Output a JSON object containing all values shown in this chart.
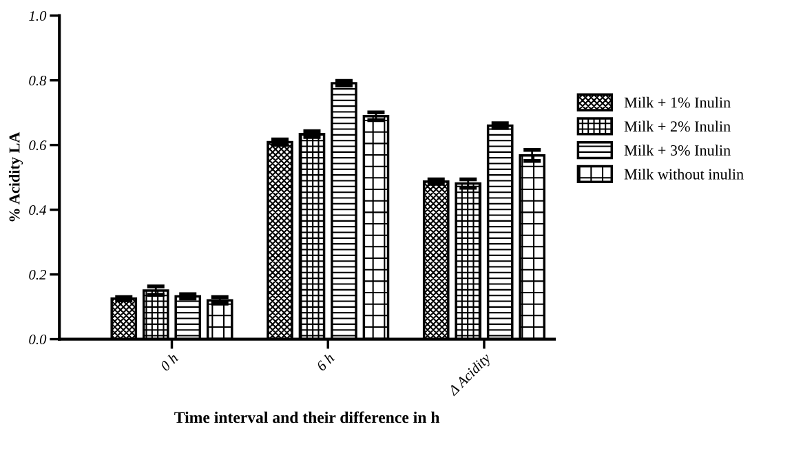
{
  "chart_data": {
    "type": "bar",
    "xlabel": "Time interval and their difference in h",
    "ylabel": "% Acidity LA",
    "categories": [
      "0 h",
      "6 h",
      "Δ Acidity"
    ],
    "series": [
      {
        "name": "Milk + 1% Inulin",
        "color": "#000000",
        "values": [
          0.125,
          0.609,
          0.487
        ],
        "errors": [
          0.005,
          0.008,
          0.007
        ]
      },
      {
        "name": "Milk + 2% Inulin",
        "color": "#000000",
        "values": [
          0.15,
          0.634,
          0.481
        ],
        "errors": [
          0.013,
          0.009,
          0.013
        ]
      },
      {
        "name": "Milk + 3% Inulin",
        "color": "#000000",
        "values": [
          0.132,
          0.791,
          0.66
        ],
        "errors": [
          0.007,
          0.007,
          0.007
        ]
      },
      {
        "name": "Milk without inulin",
        "color": "#000000",
        "values": [
          0.12,
          0.689,
          0.568
        ],
        "errors": [
          0.01,
          0.012,
          0.017
        ]
      }
    ],
    "ylim": [
      0,
      1.0
    ],
    "yticks": [
      {
        "value": 0,
        "label": "0.0"
      },
      {
        "value": 0.2,
        "label": "0.2"
      },
      {
        "value": 0.4,
        "label": "0.4"
      },
      {
        "value": 0.6,
        "label": "0.6"
      },
      {
        "value": 0.8,
        "label": "0.8"
      },
      {
        "value": 1.0,
        "label": "1.0"
      }
    ],
    "grid": false,
    "legend": "right"
  }
}
